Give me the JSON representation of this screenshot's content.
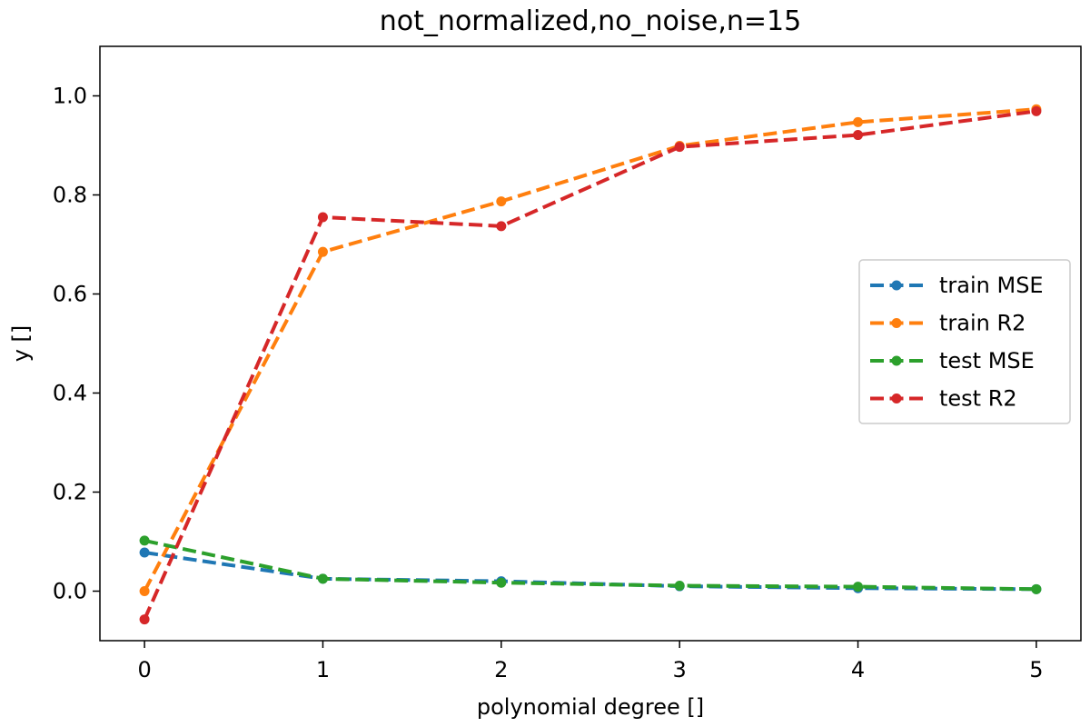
{
  "chart_data": {
    "type": "line",
    "title": "not_normalized,no_noise,n=15",
    "xlabel": "polynomial degree []",
    "ylabel": "y []",
    "x": [
      0,
      1,
      2,
      3,
      4,
      5
    ],
    "xlim": [
      -0.25,
      5.25
    ],
    "ylim": [
      -0.1,
      1.1
    ],
    "xticks": [
      "0",
      "1",
      "2",
      "3",
      "4",
      "5"
    ],
    "yticks": [
      "0.0",
      "0.2",
      "0.4",
      "0.6",
      "0.8",
      "1.0"
    ],
    "grid": false,
    "legend_position": "center-right",
    "series": [
      {
        "name": "train MSE",
        "color": "#1f77b4",
        "line_style": "dashed",
        "marker": "circle",
        "values": [
          0.078,
          0.025,
          0.02,
          0.01,
          0.006,
          0.004
        ]
      },
      {
        "name": "train R2",
        "color": "#ff7f0e",
        "line_style": "dashed",
        "marker": "circle",
        "values": [
          0.0,
          0.685,
          0.787,
          0.899,
          0.947,
          0.973
        ]
      },
      {
        "name": "test MSE",
        "color": "#2ca02c",
        "line_style": "dashed",
        "marker": "circle",
        "values": [
          0.102,
          0.025,
          0.017,
          0.011,
          0.009,
          0.004
        ]
      },
      {
        "name": "test R2",
        "color": "#d62728",
        "line_style": "dashed",
        "marker": "circle",
        "values": [
          -0.057,
          0.755,
          0.737,
          0.897,
          0.921,
          0.969
        ]
      }
    ]
  }
}
